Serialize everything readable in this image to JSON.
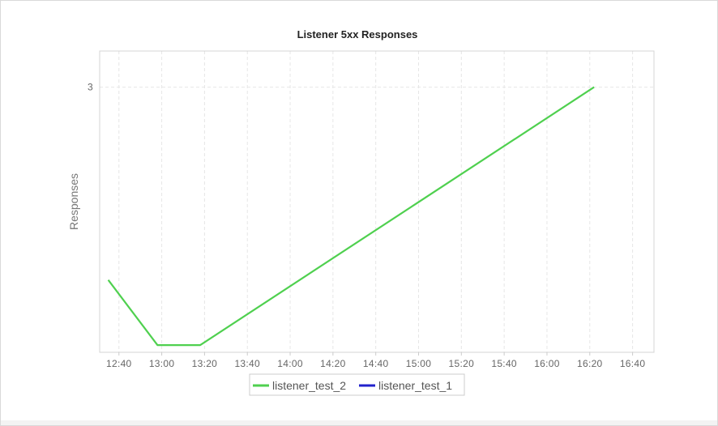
{
  "chart_data": {
    "type": "line",
    "title": "Listener 5xx Responses",
    "xlabel": "",
    "ylabel": "Responses",
    "x_ticks": [
      "12:40",
      "13:00",
      "13:20",
      "13:40",
      "14:00",
      "14:20",
      "14:40",
      "15:00",
      "15:20",
      "15:40",
      "16:00",
      "16:20",
      "16:40"
    ],
    "y_ticks": [
      3
    ],
    "xlim": [
      "12:31",
      "16:50"
    ],
    "ylim": [
      1.9,
      3.15
    ],
    "grid": true,
    "legend": "bottom-center",
    "series": [
      {
        "name": "listener_test_2",
        "color": "#4fd04f",
        "x": [
          "12:35",
          "12:58",
          "13:18",
          "16:22"
        ],
        "y": [
          2.2,
          1.93,
          1.93,
          3
        ]
      },
      {
        "name": "listener_test_1",
        "color": "#2222cc",
        "x": [],
        "y": []
      }
    ]
  }
}
